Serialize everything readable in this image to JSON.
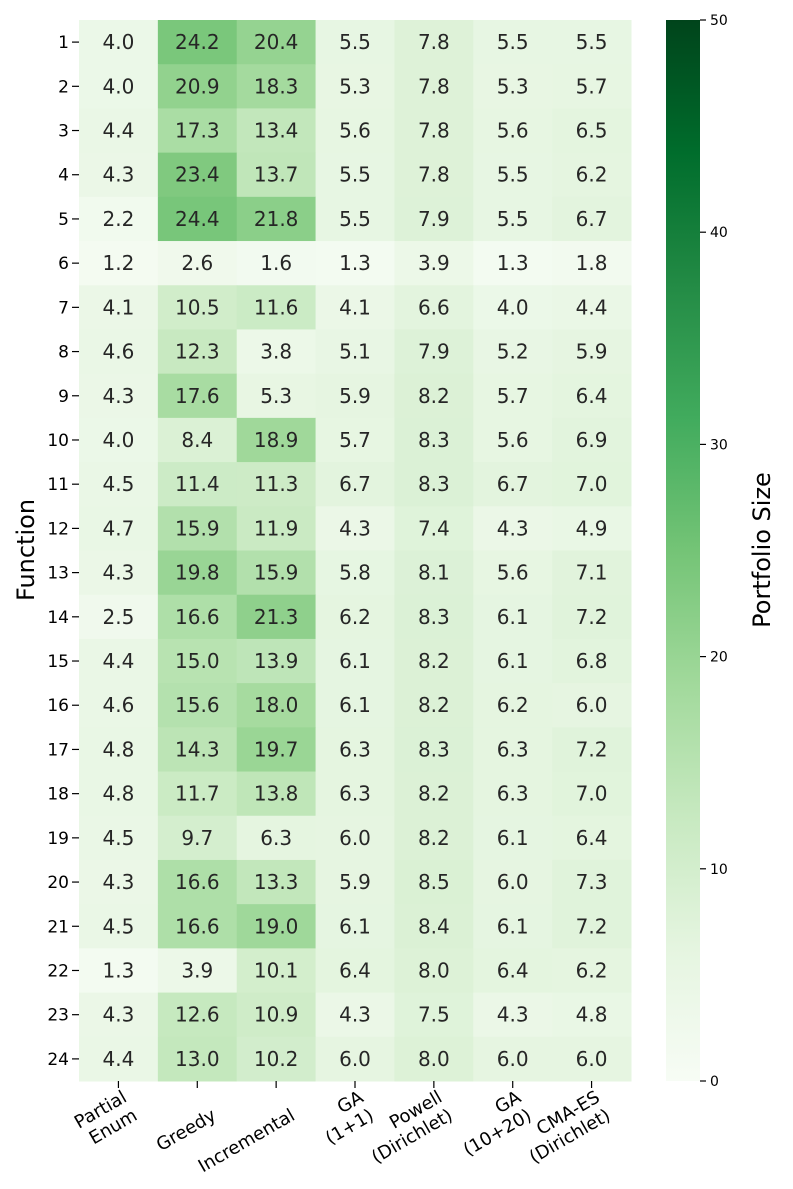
{
  "chart_data": {
    "type": "heatmap",
    "ylabel": "Function",
    "colorbar_label": "Portfolio Size",
    "colorbar_range": [
      0,
      50
    ],
    "colorbar_ticks": [
      0,
      10,
      20,
      30,
      40,
      50
    ],
    "colormap": "Greens",
    "colors": {
      "low": "#f7fcf5",
      "high": "#00441b"
    },
    "columns": [
      [
        "Partial",
        "Enum"
      ],
      [
        "Greedy"
      ],
      [
        "Incremental"
      ],
      [
        "GA",
        "(1+1)"
      ],
      [
        "Powell",
        "(Dirichlet)"
      ],
      [
        "GA",
        "(10+20)"
      ],
      [
        "CMA-ES",
        "(Dirichlet)"
      ]
    ],
    "rows": [
      "1",
      "2",
      "3",
      "4",
      "5",
      "6",
      "7",
      "8",
      "9",
      "10",
      "11",
      "12",
      "13",
      "14",
      "15",
      "16",
      "17",
      "18",
      "19",
      "20",
      "21",
      "22",
      "23",
      "24"
    ],
    "values": [
      [
        4.0,
        24.2,
        20.4,
        5.5,
        7.8,
        5.5,
        5.5
      ],
      [
        4.0,
        20.9,
        18.3,
        5.3,
        7.8,
        5.3,
        5.7
      ],
      [
        4.4,
        17.3,
        13.4,
        5.6,
        7.8,
        5.6,
        6.5
      ],
      [
        4.3,
        23.4,
        13.7,
        5.5,
        7.8,
        5.5,
        6.2
      ],
      [
        2.2,
        24.4,
        21.8,
        5.5,
        7.9,
        5.5,
        6.7
      ],
      [
        1.2,
        2.6,
        1.6,
        1.3,
        3.9,
        1.3,
        1.8
      ],
      [
        4.1,
        10.5,
        11.6,
        4.1,
        6.6,
        4.0,
        4.4
      ],
      [
        4.6,
        12.3,
        3.8,
        5.1,
        7.9,
        5.2,
        5.9
      ],
      [
        4.3,
        17.6,
        5.3,
        5.9,
        8.2,
        5.7,
        6.4
      ],
      [
        4.0,
        8.4,
        18.9,
        5.7,
        8.3,
        5.6,
        6.9
      ],
      [
        4.5,
        11.4,
        11.3,
        6.7,
        8.3,
        6.7,
        7.0
      ],
      [
        4.7,
        15.9,
        11.9,
        4.3,
        7.4,
        4.3,
        4.9
      ],
      [
        4.3,
        19.8,
        15.9,
        5.8,
        8.1,
        5.6,
        7.1
      ],
      [
        2.5,
        16.6,
        21.3,
        6.2,
        8.3,
        6.1,
        7.2
      ],
      [
        4.4,
        15.0,
        13.9,
        6.1,
        8.2,
        6.1,
        6.8
      ],
      [
        4.6,
        15.6,
        18.0,
        6.1,
        8.2,
        6.2,
        6.0
      ],
      [
        4.8,
        14.3,
        19.7,
        6.3,
        8.3,
        6.3,
        7.2
      ],
      [
        4.8,
        11.7,
        13.8,
        6.3,
        8.2,
        6.3,
        7.0
      ],
      [
        4.5,
        9.7,
        6.3,
        6.0,
        8.2,
        6.1,
        6.4
      ],
      [
        4.3,
        16.6,
        13.3,
        5.9,
        8.5,
        6.0,
        7.3
      ],
      [
        4.5,
        16.6,
        19.0,
        6.1,
        8.4,
        6.1,
        7.2
      ],
      [
        1.3,
        3.9,
        10.1,
        6.4,
        8.0,
        6.4,
        6.2
      ],
      [
        4.3,
        12.6,
        10.9,
        4.3,
        7.5,
        4.3,
        4.8
      ],
      [
        4.4,
        13.0,
        10.2,
        6.0,
        8.0,
        6.0,
        6.0
      ]
    ]
  }
}
